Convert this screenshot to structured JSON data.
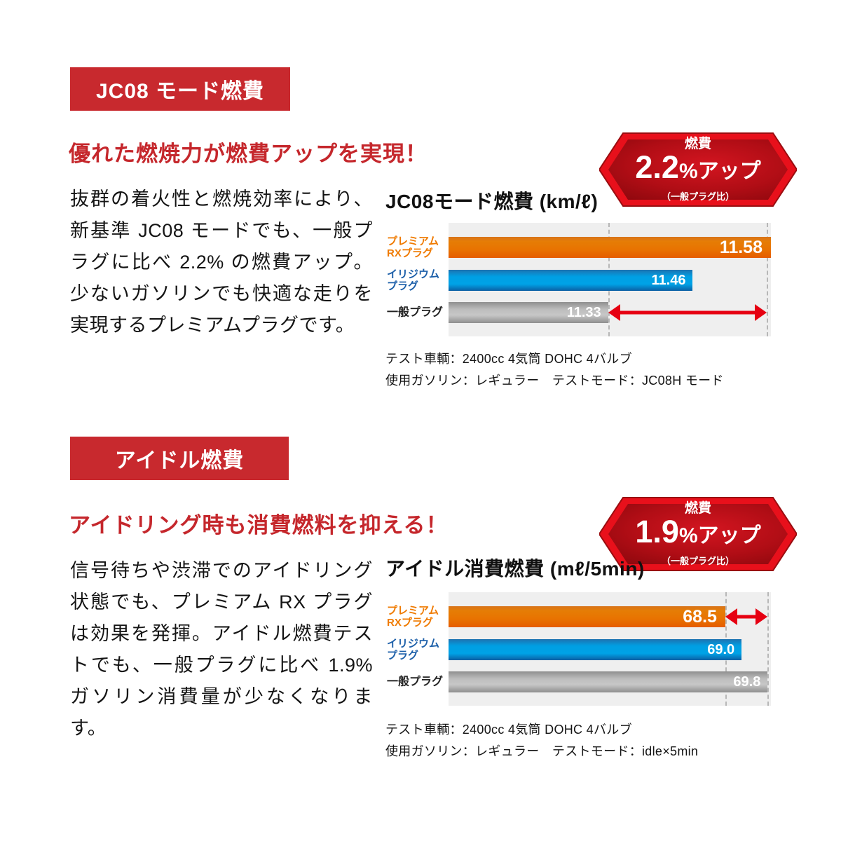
{
  "colors": {
    "accent_red": "#c8292e",
    "badge_border_red": "#e8101b",
    "badge_fill_dark_red": "#9a0a10",
    "arrow_red": "#e60012",
    "bar_orange": "#e87301",
    "bar_blue": "#009fe3",
    "bar_gray": "#b5b5b5",
    "label_orange": "#ef7a00",
    "label_blue": "#1c5fa9",
    "plot_background": "#efefef"
  },
  "sections": [
    {
      "tag": "JC08 モード燃費",
      "headline": "優れた燃焼力が燃費アップを実現！",
      "body": "抜群の着火性と燃焼効率により、新基準 JC08 モードでも、一般プラグに比べ 2.2% の燃費アップ。少ないガソリンでも快適な走りを実現するプレミアムプラグです。",
      "badge": {
        "top_label": "燃費",
        "value": "2.2",
        "suffix": "%アップ",
        "note": "（一般プラグ比）"
      }
    },
    {
      "tag": "アイドル燃費",
      "headline": "アイドリング時も消費燃料を抑える！",
      "body": "信号待ちや渋滞でのアイドリング状態でも、プレミアム RX プラグは効果を発揮。アイドル燃費テストでも、一般プラグに比べ 1.9% ガソリン消費量が少なくなります。",
      "badge": {
        "top_label": "燃費",
        "value": "1.9",
        "suffix": "%アップ",
        "note": "（一般プラグ比）"
      }
    }
  ],
  "chart_data": [
    {
      "type": "bar",
      "orientation": "horizontal",
      "title": "JC08モード燃費 (km/ℓ)",
      "ylabel": "",
      "xlabel": "km/ℓ",
      "categories": [
        "プレミアム RXプラグ",
        "イリジウム プラグ",
        "一般プラグ"
      ],
      "category_lines": [
        [
          "プレミアム",
          "RXプラグ"
        ],
        [
          "イリジウム",
          "プラグ"
        ],
        [
          "一般プラグ"
        ]
      ],
      "values": [
        11.58,
        11.46,
        11.33
      ],
      "value_labels": [
        "11.58",
        "11.46",
        "11.33"
      ],
      "colors": [
        "orange",
        "blue",
        "gray"
      ],
      "xlim": [
        11.085,
        11.58
      ],
      "grid": false,
      "legend": "none",
      "dashed_lines": [
        11.33,
        11.574
      ],
      "diff_arrow": {
        "row": 2,
        "from": 11.33,
        "to": 11.574
      },
      "notes": [
        "テスト車輌：2400cc 4気筒 DOHC 4バルブ",
        "使用ガソリン：レギュラー　テストモード：JC08H モード"
      ]
    },
    {
      "type": "bar",
      "orientation": "horizontal",
      "title": "アイドル消費燃費 (mℓ/5min)",
      "ylabel": "",
      "xlabel": "mℓ/5min",
      "categories": [
        "プレミアム RXプラグ",
        "イリジウム プラグ",
        "一般プラグ"
      ],
      "category_lines": [
        [
          "プレミアム",
          "RXプラグ"
        ],
        [
          "イリジウム",
          "プラグ"
        ],
        [
          "一般プラグ"
        ]
      ],
      "values": [
        68.5,
        69.0,
        69.8
      ],
      "value_labels": [
        "68.5",
        "69.0",
        "69.8"
      ],
      "colors": [
        "orange",
        "blue",
        "gray"
      ],
      "xlim": [
        60.0,
        69.9
      ],
      "grid": false,
      "legend": "none",
      "dashed_lines": [
        68.5,
        69.8
      ],
      "diff_arrow": {
        "row": 0,
        "from": 68.5,
        "to": 69.8
      },
      "notes": [
        "テスト車輌：2400cc 4気筒 DOHC 4バルブ",
        "使用ガソリン：レギュラー　テストモード：idle×5min"
      ]
    }
  ]
}
